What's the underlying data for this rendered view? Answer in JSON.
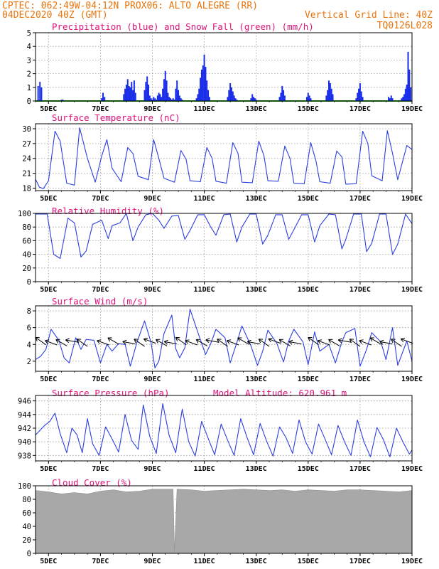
{
  "header": {
    "left_line1": "CPTEC:  062:49W-04:12N  PROX06: ALTO ALEGRE (RR)",
    "left_line2": "04DEC2020 40Z (GMT)",
    "right_line2": "Vertical Grid Line: 40Z",
    "right_line3": "TQ0126L028"
  },
  "colors": {
    "header": "#e8740c",
    "title": "#e0127a",
    "line": "#2b3fe0",
    "precip": "#1a2ee8",
    "snow": "#22aa22",
    "cloud": "#a8a8a8",
    "grid": "#9a9a9a"
  },
  "date_labels": [
    "5DEC",
    "7DEC",
    "9DEC",
    "11DEC",
    "13DEC",
    "15DEC",
    "17DEC",
    "19DEC"
  ],
  "chart_data": [
    {
      "type": "bar",
      "title": "Precipitation (blue) and Snow Fall (green) (mm/h)",
      "ylim": [
        0,
        5
      ],
      "yticks": [
        0,
        1,
        2,
        3,
        4,
        5
      ],
      "x_start": "04DEC2020 12Z",
      "x_end": "19DEC2020 00Z",
      "series": [
        {
          "name": "Precipitation",
          "x": [
            0.1,
            0.17,
            0.23,
            1.0,
            1.05,
            2.55,
            2.6,
            2.66,
            3.4,
            3.45,
            3.5,
            3.55,
            3.6,
            3.65,
            3.7,
            3.75,
            3.8,
            3.85,
            4.2,
            4.25,
            4.3,
            4.35,
            4.4,
            4.45,
            4.5,
            4.55,
            4.6,
            4.65,
            4.7,
            4.75,
            4.8,
            4.85,
            4.9,
            4.95,
            5.0,
            5.05,
            5.1,
            5.15,
            5.2,
            5.25,
            5.3,
            5.35,
            5.4,
            5.45,
            5.5,
            5.55,
            5.6,
            5.65,
            6.2,
            6.25,
            6.3,
            6.35,
            6.4,
            6.45,
            6.5,
            6.55,
            6.6,
            6.65,
            6.7,
            7.4,
            7.45,
            7.5,
            7.55,
            7.6,
            7.65,
            7.7,
            7.75,
            8.3,
            8.35,
            8.4,
            8.45,
            8.5,
            9.4,
            9.45,
            9.5,
            9.55,
            9.6,
            10.45,
            10.5,
            10.55,
            10.6,
            11.2,
            11.25,
            11.3,
            11.35,
            11.4,
            11.45,
            12.35,
            12.4,
            12.45,
            12.5,
            12.55,
            12.6,
            13.6,
            13.65,
            13.7,
            13.75,
            14.1,
            14.15,
            14.2,
            14.25,
            14.3,
            14.35,
            14.4,
            14.45
          ],
          "values": [
            1.1,
            1.4,
            1.0,
            0.1,
            0.1,
            0.2,
            0.6,
            0.3,
            0.5,
            0.9,
            1.2,
            1.6,
            1.1,
            1.0,
            1.4,
            0.8,
            1.5,
            0.6,
            0.8,
            1.4,
            1.8,
            1.2,
            0.4,
            0.2,
            0.1,
            0.3,
            0.2,
            0.1,
            0.4,
            0.6,
            0.5,
            0.3,
            0.9,
            1.6,
            2.2,
            1.5,
            0.6,
            0.3,
            0.2,
            0.1,
            0.2,
            0.1,
            0.9,
            1.5,
            0.8,
            0.4,
            0.2,
            0.1,
            0.2,
            0.5,
            0.9,
            1.7,
            2.3,
            2.6,
            3.4,
            2.5,
            1.5,
            0.8,
            0.3,
            0.3,
            0.8,
            1.3,
            1.0,
            0.7,
            0.4,
            0.2,
            0.1,
            0.2,
            0.5,
            0.3,
            0.2,
            0.1,
            0.3,
            0.6,
            1.1,
            0.8,
            0.4,
            0.3,
            0.6,
            0.4,
            0.2,
            0.4,
            0.8,
            1.5,
            1.3,
            0.9,
            0.5,
            0.2,
            0.6,
            0.9,
            1.3,
            0.7,
            0.3,
            0.3,
            0.2,
            0.4,
            0.2,
            0.2,
            0.3,
            0.5,
            0.9,
            1.2,
            3.6,
            2.3,
            1.0
          ]
        },
        {
          "name": "Snow Fall",
          "x": [
            0,
            14.5
          ],
          "values": [
            0,
            0
          ]
        }
      ]
    },
    {
      "type": "line",
      "title": "Surface Temperature (nC)",
      "ylim": [
        17.5,
        31
      ],
      "yticks": [
        18,
        21,
        24,
        27,
        30
      ],
      "x_start": "04DEC2020 12Z",
      "x_end": "19DEC2020 00Z",
      "x": [
        0,
        0.15,
        0.3,
        0.5,
        0.75,
        0.95,
        1.2,
        1.5,
        1.7,
        2.0,
        2.3,
        2.55,
        2.75,
        2.95,
        3.3,
        3.55,
        3.75,
        3.95,
        4.35,
        4.55,
        4.75,
        4.95,
        5.35,
        5.6,
        5.8,
        5.95,
        6.35,
        6.6,
        6.8,
        6.95,
        7.35,
        7.6,
        7.8,
        7.95,
        8.35,
        8.6,
        8.8,
        8.95,
        9.35,
        9.6,
        9.8,
        9.95,
        10.35,
        10.6,
        10.8,
        10.95,
        11.35,
        11.6,
        11.8,
        11.95,
        12.35,
        12.6,
        12.8,
        12.95,
        13.35,
        13.55,
        13.75,
        13.95,
        14.3,
        14.5
      ],
      "values": [
        19.8,
        18.2,
        17.9,
        19.5,
        29.5,
        27.5,
        19.0,
        18.6,
        30.2,
        24.0,
        19.2,
        24.5,
        27.8,
        22.0,
        19.3,
        26.2,
        25.0,
        20.4,
        19.7,
        27.8,
        24.0,
        20.0,
        19.2,
        25.6,
        23.8,
        19.5,
        19.3,
        26.2,
        24.0,
        19.4,
        19.0,
        27.2,
        25.0,
        19.2,
        19.1,
        27.5,
        24.5,
        19.5,
        19.4,
        26.5,
        24.0,
        19.0,
        18.9,
        27.2,
        23.5,
        19.3,
        19.0,
        25.5,
        24.3,
        18.8,
        18.9,
        29.5,
        27.0,
        20.5,
        19.5,
        29.6,
        25.0,
        19.7,
        26.6,
        25.8
      ]
    },
    {
      "type": "line",
      "title": "Relative Humidity (%)",
      "ylim": [
        0,
        100
      ],
      "yticks": [
        0,
        20,
        40,
        60,
        80,
        100
      ],
      "x_start": "04DEC2020 12Z",
      "x_end": "19DEC2020 00Z",
      "x": [
        0,
        0.2,
        0.45,
        0.7,
        0.95,
        1.25,
        1.5,
        1.75,
        1.95,
        2.2,
        2.55,
        2.8,
        2.95,
        3.25,
        3.5,
        3.75,
        3.95,
        4.25,
        4.5,
        4.75,
        4.95,
        5.25,
        5.5,
        5.75,
        5.95,
        6.25,
        6.5,
        6.75,
        6.95,
        7.25,
        7.5,
        7.75,
        7.95,
        8.25,
        8.5,
        8.75,
        8.95,
        9.25,
        9.5,
        9.75,
        9.95,
        10.25,
        10.5,
        10.75,
        10.95,
        11.3,
        11.55,
        11.8,
        11.95,
        12.25,
        12.55,
        12.75,
        12.95,
        13.25,
        13.5,
        13.75,
        13.95,
        14.25,
        14.5
      ],
      "values": [
        99,
        99,
        99,
        40,
        34,
        93,
        86,
        36,
        45,
        84,
        90,
        63,
        82,
        86,
        100,
        60,
        80,
        98,
        100,
        90,
        78,
        96,
        97,
        62,
        75,
        98,
        98,
        80,
        68,
        98,
        99,
        58,
        80,
        99,
        99,
        55,
        68,
        98,
        98,
        62,
        76,
        98,
        98,
        58,
        82,
        99,
        98,
        48,
        62,
        99,
        99,
        44,
        56,
        99,
        99,
        40,
        55,
        99,
        85
      ]
    },
    {
      "type": "line",
      "title": "Surface Wind (m/s)",
      "ylim": [
        0.8,
        8.6
      ],
      "yticks": [
        2,
        4,
        6,
        8
      ],
      "x_start": "04DEC2020 12Z",
      "x_end": "19DEC2020 00Z",
      "x": [
        0,
        0.2,
        0.4,
        0.6,
        0.9,
        1.1,
        1.3,
        1.55,
        1.75,
        1.95,
        2.25,
        2.5,
        2.75,
        2.95,
        3.2,
        3.45,
        3.65,
        3.9,
        4.2,
        4.45,
        4.6,
        4.75,
        4.95,
        5.25,
        5.4,
        5.55,
        5.75,
        5.95,
        6.3,
        6.55,
        6.75,
        6.95,
        7.3,
        7.5,
        7.75,
        7.95,
        8.3,
        8.55,
        8.75,
        8.95,
        9.3,
        9.55,
        9.75,
        9.95,
        10.3,
        10.5,
        10.75,
        10.95,
        11.3,
        11.55,
        11.8,
        11.95,
        12.3,
        12.5,
        12.75,
        12.95,
        13.3,
        13.5,
        13.75,
        13.95,
        14.3,
        14.5
      ],
      "values": [
        2.2,
        2.6,
        3.4,
        5.8,
        4.5,
        2.4,
        1.8,
        4.8,
        3.4,
        4.6,
        4.5,
        1.8,
        4.0,
        3.2,
        4.1,
        4.0,
        1.4,
        4.2,
        6.8,
        4.2,
        1.2,
        2.0,
        5.3,
        7.5,
        3.5,
        2.4,
        3.6,
        8.2,
        5.0,
        2.8,
        4.1,
        5.8,
        4.8,
        1.8,
        4.2,
        6.2,
        3.8,
        1.5,
        3.2,
        5.7,
        4.1,
        1.9,
        4.4,
        5.8,
        4.3,
        1.6,
        5.5,
        3.2,
        4.0,
        1.8,
        4.3,
        5.4,
        5.9,
        1.4,
        3.4,
        5.4,
        4.3,
        2.2,
        6.0,
        1.5,
        4.4,
        2.0
      ],
      "arrows_at_x": [
        0.2,
        0.6,
        1.0,
        1.4,
        1.8,
        2.6,
        3.0,
        3.6,
        4.0,
        4.4,
        4.85,
        5.2,
        5.6,
        6.0,
        6.4,
        6.8,
        7.2,
        7.6,
        8.0,
        8.4,
        8.8,
        9.2,
        9.6,
        10.0,
        10.7,
        11.1,
        11.5,
        11.9,
        12.3,
        12.7,
        13.1,
        13.5,
        13.9,
        14.3
      ]
    },
    {
      "type": "line",
      "title": "Surface Pressure (hPa)",
      "annotation": "Model Altitude: 620.961 m",
      "ylim": [
        937.2,
        946.8
      ],
      "yticks": [
        938,
        940,
        942,
        944,
        946
      ],
      "x_start": "04DEC2020 12Z",
      "x_end": "19DEC2020 00Z",
      "x": [
        0,
        0.15,
        0.35,
        0.55,
        0.75,
        0.95,
        1.2,
        1.4,
        1.6,
        1.8,
        2.0,
        2.2,
        2.45,
        2.7,
        2.95,
        3.2,
        3.45,
        3.7,
        3.95,
        4.15,
        4.4,
        4.65,
        4.9,
        5.15,
        5.4,
        5.65,
        5.9,
        6.15,
        6.4,
        6.65,
        6.9,
        7.15,
        7.4,
        7.65,
        7.9,
        8.15,
        8.4,
        8.65,
        8.9,
        9.15,
        9.4,
        9.65,
        9.9,
        10.15,
        10.4,
        10.65,
        10.9,
        11.15,
        11.4,
        11.65,
        11.9,
        12.15,
        12.4,
        12.65,
        12.9,
        13.15,
        13.4,
        13.65,
        13.9,
        14.15,
        14.4,
        14.5
      ],
      "values": [
        941.0,
        941.6,
        942.4,
        943.0,
        944.2,
        941.2,
        938.4,
        942.0,
        941.0,
        938.4,
        943.4,
        939.7,
        938.0,
        942.2,
        940.4,
        938.5,
        944.0,
        940.2,
        938.9,
        945.4,
        940.8,
        938.3,
        945.6,
        940.9,
        938.4,
        944.8,
        940.0,
        937.9,
        943.0,
        940.5,
        938.1,
        942.6,
        940.2,
        938.0,
        943.4,
        940.6,
        938.1,
        942.7,
        940.1,
        937.9,
        942.2,
        940.6,
        938.3,
        943.2,
        940.0,
        938.2,
        942.6,
        940.4,
        938.1,
        942.4,
        940.0,
        938.0,
        943.2,
        940.0,
        937.8,
        942.1,
        940.3,
        937.8,
        942.0,
        940.0,
        938.2,
        938.8
      ]
    },
    {
      "type": "area",
      "title": "Cloud Cover (%)",
      "ylim": [
        0,
        100
      ],
      "yticks": [
        0,
        20,
        40,
        60,
        80,
        100
      ],
      "x_start": "04DEC2020 12Z",
      "x_end": "19DEC2020 00Z",
      "x": [
        0,
        0.5,
        1.0,
        1.5,
        2.0,
        2.5,
        3.0,
        3.5,
        4.0,
        4.5,
        5.0,
        5.3,
        5.35,
        5.45,
        6.0,
        6.5,
        7.0,
        7.5,
        8.0,
        8.5,
        9.0,
        9.5,
        10.0,
        10.5,
        11.0,
        11.5,
        12.0,
        12.5,
        13.0,
        13.5,
        14.0,
        14.5
      ],
      "values": [
        93,
        91,
        88,
        90,
        88,
        92,
        94,
        91,
        92,
        95,
        95,
        95,
        3,
        95,
        94,
        92,
        93,
        94,
        95,
        94,
        93,
        94,
        92,
        94,
        93,
        92,
        94,
        94,
        93,
        92,
        91,
        93
      ]
    }
  ]
}
